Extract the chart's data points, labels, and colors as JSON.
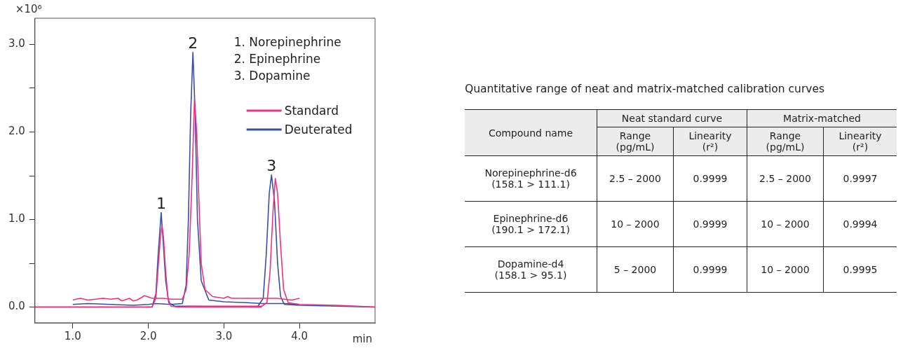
{
  "chart_data": [
    {
      "type": "line",
      "ylabel": "×10⁶",
      "xlabel": "min",
      "xlim": [
        0.5,
        5.0
      ],
      "ylim": [
        -0.18,
        3.3
      ],
      "xticks": [
        {
          "value": 1,
          "label": "1.0"
        },
        {
          "value": 2,
          "label": "2.0"
        },
        {
          "value": 3,
          "label": "3.0"
        },
        {
          "value": 4,
          "label": "4.0"
        }
      ],
      "yticks": [
        {
          "value": 0,
          "label": "0.0"
        },
        {
          "value": 0.5,
          "label": null
        },
        {
          "value": 1,
          "label": "1.0"
        },
        {
          "value": 1.5,
          "label": null
        },
        {
          "value": 2,
          "label": "2.0"
        },
        {
          "value": 2.5,
          "label": null
        },
        {
          "value": 3,
          "label": "3.0"
        }
      ],
      "grid": false,
      "legend": "top right",
      "marker": "none",
      "line_style": "solid",
      "series": [
        {
          "name": "Standard",
          "color": "#e8357f",
          "x": [
            0.5,
            2.05,
            2.1,
            2.13,
            2.16,
            2.18,
            2.2,
            2.23,
            2.26,
            2.3,
            2.4,
            3.0,
            3.5
          ],
          "values": [
            0,
            0,
            0.1,
            0.45,
            0.8,
            0.93,
            0.8,
            0.4,
            0.1,
            0.01,
            0,
            0,
            0
          ]
        },
        {
          "color": "#e8357f",
          "x": [
            1.0,
            1.1,
            1.2,
            1.3,
            1.4,
            1.5,
            1.6,
            1.65,
            1.75,
            1.8,
            1.85,
            1.95,
            2.05,
            2.2,
            2.3,
            2.45,
            2.5,
            2.54,
            2.58,
            2.61,
            2.64,
            2.67,
            2.7,
            2.75,
            2.85,
            3.0,
            3.05,
            3.1,
            3.3,
            3.45,
            3.6,
            3.7,
            3.9,
            4.0
          ],
          "values": [
            0.08,
            0.1,
            0.08,
            0.09,
            0.1,
            0.09,
            0.1,
            0.07,
            0.1,
            0.07,
            0.08,
            0.13,
            0.1,
            0.1,
            0.09,
            0.09,
            0.2,
            0.6,
            1.5,
            2.37,
            2.0,
            1.2,
            0.5,
            0.2,
            0.12,
            0.1,
            0.12,
            0.1,
            0.1,
            0.1,
            0.1,
            0.1,
            0.08,
            0.1
          ]
        },
        {
          "color": "#e8357f",
          "x": [
            2.5,
            3.5,
            3.57,
            3.61,
            3.65,
            3.68,
            3.71,
            3.75,
            3.79,
            3.85,
            4.0,
            4.5,
            5.0
          ],
          "values": [
            0.01,
            0.01,
            0.05,
            0.4,
            1.1,
            1.47,
            1.3,
            0.7,
            0.2,
            0.05,
            0.03,
            0.02,
            0
          ]
        },
        {
          "name": "Deuterated",
          "color": "#3a4fa0",
          "x": [
            0.5,
            2.05,
            2.1,
            2.13,
            2.17,
            2.2,
            2.23,
            2.27,
            2.35,
            3.5
          ],
          "values": [
            0,
            0,
            0.15,
            0.6,
            1.08,
            0.7,
            0.3,
            0.05,
            0.01,
            0
          ]
        },
        {
          "color": "#3a4fa0",
          "x": [
            1.0,
            1.2,
            1.5,
            1.8,
            2.0,
            2.1,
            2.3,
            2.45,
            2.5,
            2.53,
            2.56,
            2.59,
            2.62,
            2.65,
            2.7,
            2.8,
            3.0,
            3.3,
            3.5,
            3.8,
            4.0
          ],
          "values": [
            0.03,
            0.04,
            0.03,
            0.02,
            0.03,
            0.04,
            0.03,
            0.04,
            0.25,
            1.0,
            2.2,
            2.91,
            2.2,
            1.0,
            0.3,
            0.08,
            0.06,
            0.05,
            0.04,
            0.04,
            0.03
          ]
        },
        {
          "color": "#3a4fa0",
          "x": [
            3.45,
            3.52,
            3.56,
            3.6,
            3.63,
            3.67,
            3.71,
            3.75,
            3.8,
            4.0,
            4.5,
            5.0
          ],
          "values": [
            0.01,
            0.1,
            0.6,
            1.3,
            1.51,
            1.2,
            0.5,
            0.12,
            0.03,
            0.02,
            0.01,
            0
          ]
        }
      ],
      "annotations": [
        {
          "text": "1",
          "x": 2.17,
          "y": 1.08
        },
        {
          "text": "2",
          "x": 2.59,
          "y": 2.91
        },
        {
          "text": "3",
          "x": 3.63,
          "y": 1.51
        },
        "1. Norepinephrine",
        "2. Epinephrine",
        "3. Dopamine"
      ]
    },
    {
      "type": "other",
      "title": "Quantitative range of neat and matrix-matched calibration curves",
      "annotations": [
        "Compound name",
        "Neat standard curve",
        "Matrix-matched",
        "Range\n(pg/mL)",
        "Linearity\n(r²)",
        "Range\n(pg/mL)",
        "Linearity\n(r²)",
        "Norepinephrine-d6\n(158.1 > 111.1)",
        "2.5 – 2000",
        "0.9999",
        "2.5 – 2000",
        "0.9997",
        "Epinephrine-d6\n(190.1 > 172.1)",
        "10 – 2000",
        "0.9999",
        "10 – 2000",
        "0.9994",
        "Dopamine-d4\n(158.1 > 95.1)",
        "5 – 2000",
        "0.9999",
        "10 – 2000",
        "0.9995"
      ]
    }
  ]
}
